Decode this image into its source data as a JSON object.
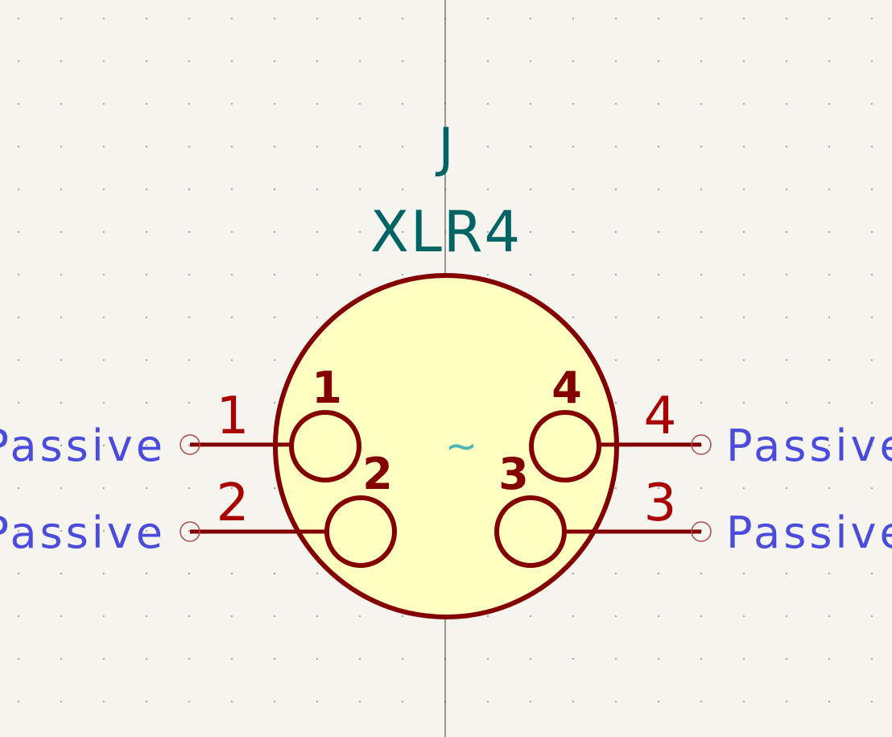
{
  "component": {
    "reference": "J",
    "value": "XLR4",
    "symbol_marker": "~"
  },
  "pins": [
    {
      "number": "1",
      "inner_label": "1",
      "type": "Passive",
      "side": "left"
    },
    {
      "number": "2",
      "inner_label": "2",
      "type": "Passive",
      "side": "left"
    },
    {
      "number": "4",
      "inner_label": "4",
      "type": "Passive",
      "side": "right"
    },
    {
      "number": "3",
      "inner_label": "3",
      "type": "Passive",
      "side": "right"
    }
  ],
  "colors": {
    "background": "#f5f4ef",
    "grid_dot": "#9a9a9a",
    "crosshair": "#3a3a3a",
    "body_fill": "#ffffc2",
    "outline": "#840000",
    "pin_number": "#a90000",
    "inner_label": "#840000",
    "reference_text": "#006464",
    "pin_type_text": "#4b4bdc",
    "pin_end_circle": "#b04a4a",
    "marker_text": "#48b4b4"
  }
}
